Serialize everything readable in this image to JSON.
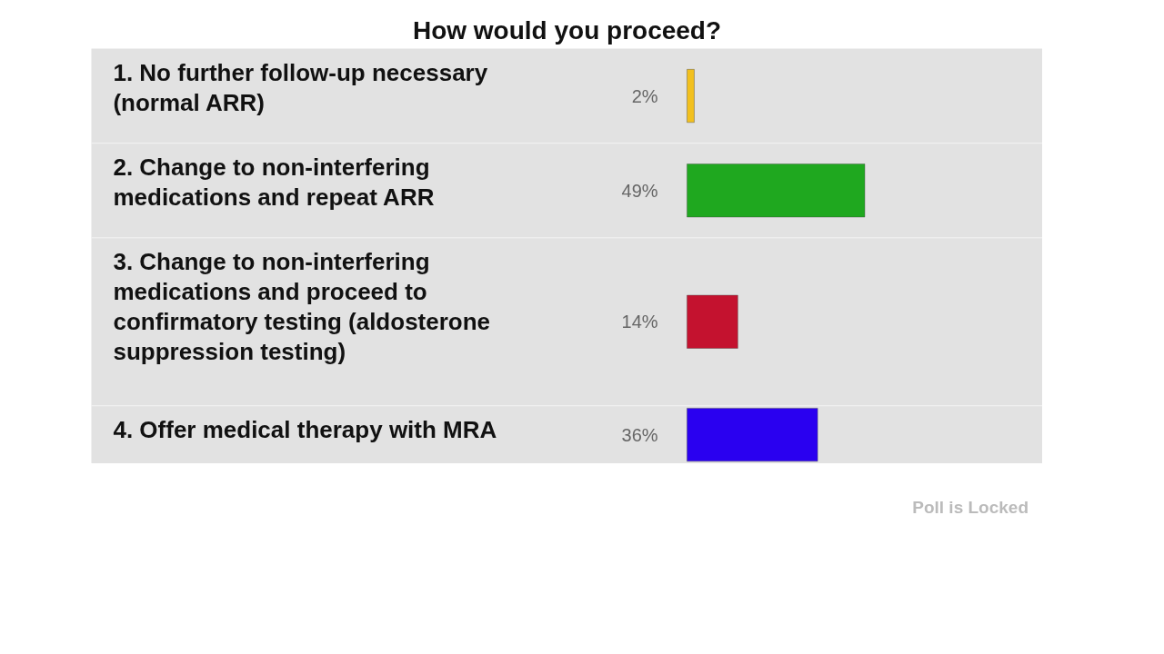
{
  "chart_data": {
    "type": "bar",
    "orientation": "horizontal",
    "title": "How would you proceed?",
    "categories": [
      "1. No further follow-up necessary (normal ARR)",
      "2. Change to non-interfering medications and repeat ARR",
      "3. Change to non-interfering medications and proceed to confirmatory testing (aldosterone suppression testing)",
      "4. Offer medical therapy with MRA"
    ],
    "values": [
      2,
      49,
      14,
      36
    ],
    "colors": [
      "#f2c01e",
      "#1fa81f",
      "#c4122f",
      "#2a00f0"
    ],
    "value_labels": [
      "2%",
      "49%",
      "14%",
      "36%"
    ],
    "annotations": [
      "Poll is Locked"
    ]
  }
}
